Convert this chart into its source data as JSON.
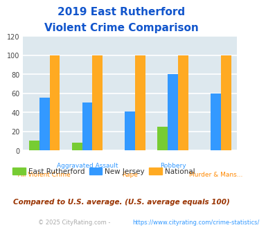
{
  "title_line1": "2019 East Rutherford",
  "title_line2": "Violent Crime Comparison",
  "categories": [
    "All Violent Crime",
    "Aggravated Assault",
    "Rape",
    "Robbery",
    "Murder & Mans..."
  ],
  "east_rutherford": [
    10,
    8,
    0,
    25,
    0
  ],
  "new_jersey": [
    55,
    50,
    41,
    80,
    60
  ],
  "national": [
    100,
    100,
    100,
    100,
    100
  ],
  "colors": {
    "east_rutherford": "#77cc33",
    "new_jersey": "#3399ff",
    "national": "#ffaa22"
  },
  "ylim": [
    0,
    120
  ],
  "yticks": [
    0,
    20,
    40,
    60,
    80,
    100,
    120
  ],
  "title_color": "#1155cc",
  "bg_plot": "#dde8ee",
  "bg_fig": "#ffffff",
  "grid_color": "#ffffff",
  "label_color_top": "#3399ff",
  "label_color_bot": "#ff8800",
  "footer_text": "Compared to U.S. average. (U.S. average equals 100)",
  "copyright_text": "© 2025 CityRating.com - https://www.cityrating.com/crime-statistics/",
  "copyright_link_color": "#3399ff",
  "legend_labels": [
    "East Rutherford",
    "New Jersey",
    "National"
  ]
}
